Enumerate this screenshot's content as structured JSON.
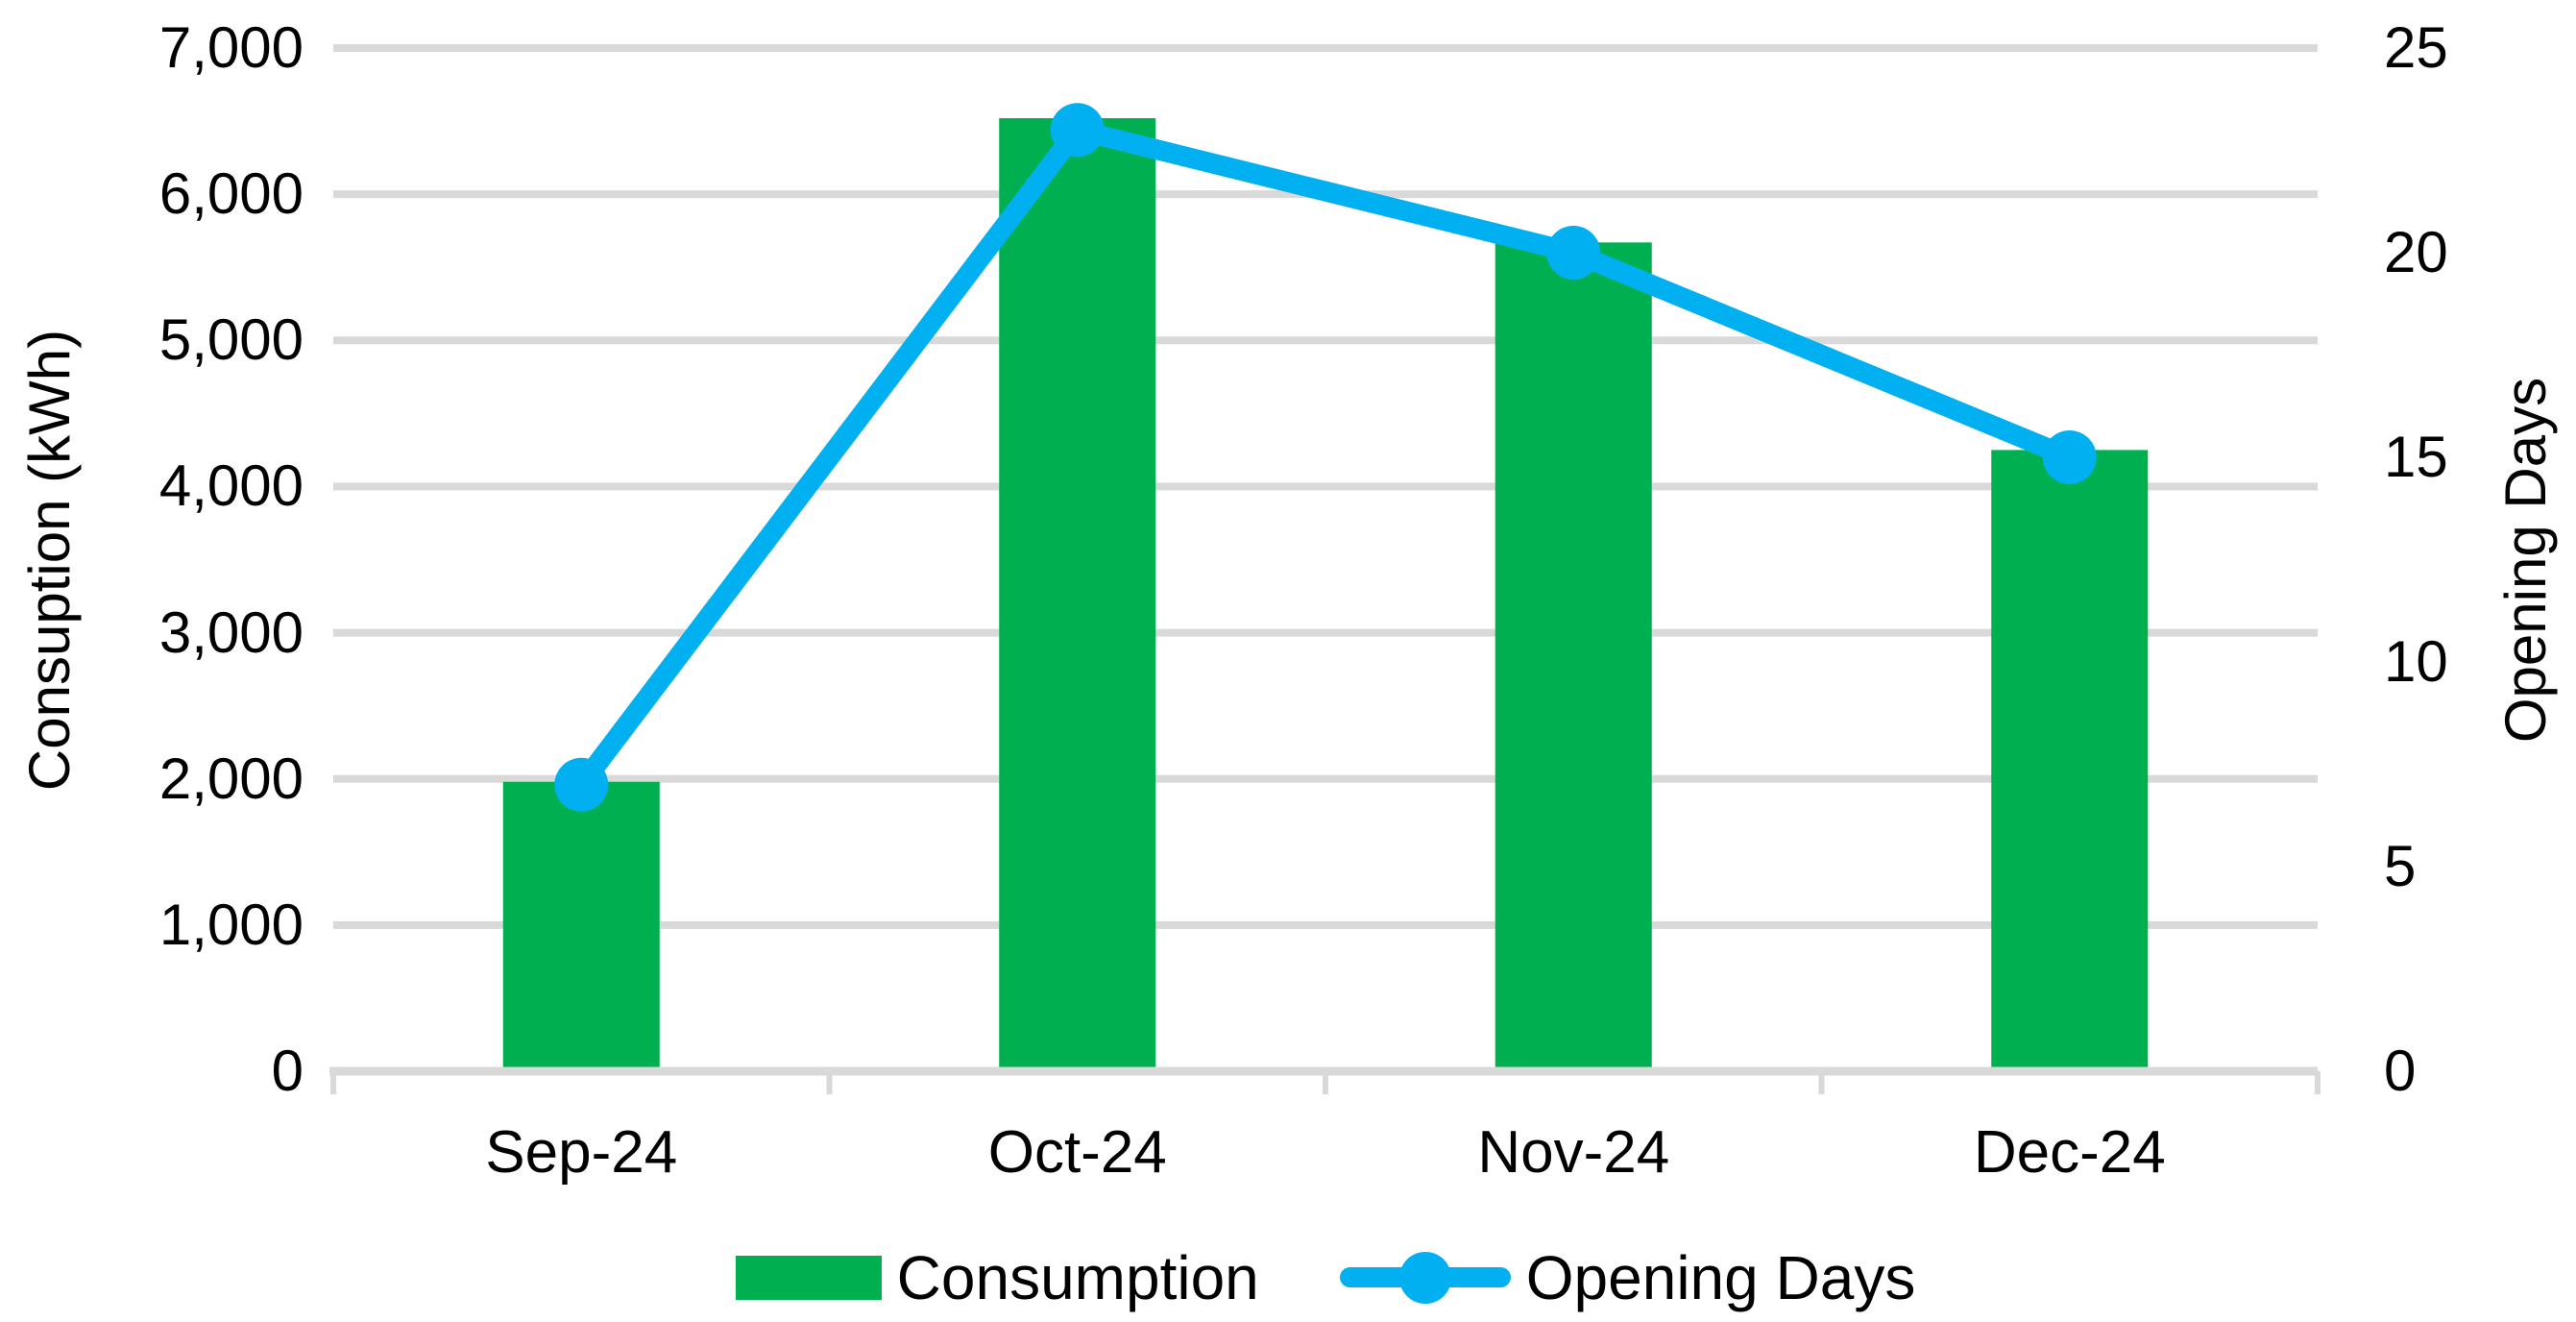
{
  "chart_data": {
    "type": "combo",
    "categories": [
      "Sep-24",
      "Oct-24",
      "Nov-24",
      "Dec-24"
    ],
    "series": [
      {
        "name": "Consumption",
        "type": "bar",
        "axis": "left",
        "color": "#00B050",
        "values": [
          1980,
          6520,
          5670,
          4250
        ]
      },
      {
        "name": "Opening Days",
        "type": "line",
        "axis": "right",
        "color": "#00B0F0",
        "values": [
          7,
          23,
          20,
          15
        ]
      }
    ],
    "left_axis": {
      "title": "Consuption (kWh)",
      "min": 0,
      "max": 7000,
      "tick_step": 1000,
      "tick_labels": [
        "0",
        "1,000",
        "2,000",
        "3,000",
        "4,000",
        "5,000",
        "6,000",
        "7,000"
      ]
    },
    "right_axis": {
      "title": "Opening Days",
      "min": 0,
      "max": 25,
      "tick_step": 5,
      "tick_labels": [
        "0",
        "5",
        "10",
        "15",
        "20",
        "25"
      ]
    },
    "grid": true,
    "legend_position": "bottom",
    "colors": {
      "gridline": "#D9D9D9",
      "axis_line": "#D9D9D9",
      "text": "#000000",
      "background": "#FFFFFF"
    }
  }
}
